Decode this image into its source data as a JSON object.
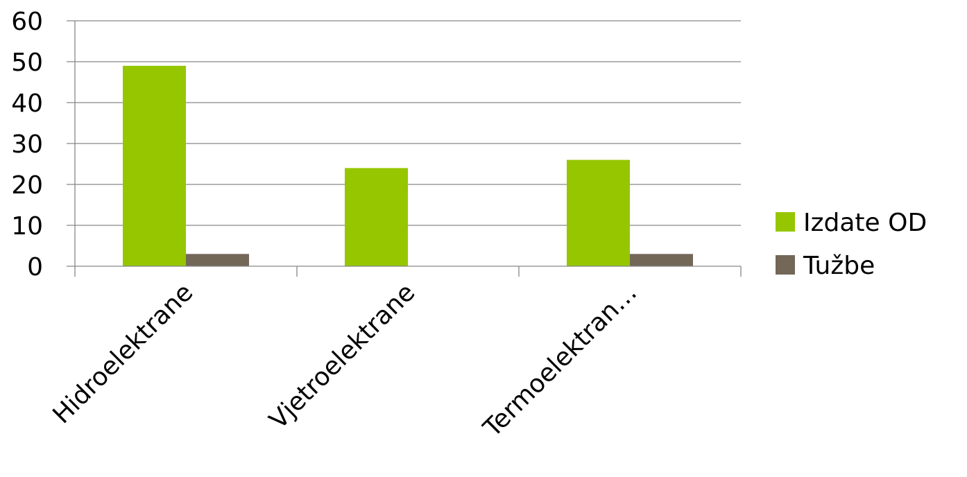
{
  "chart_data": {
    "type": "bar",
    "title": "",
    "xlabel": "",
    "ylabel": "",
    "categories": [
      "Hidroelektrane",
      "Vjetroelektrane",
      "Termoelektran…"
    ],
    "series": [
      {
        "name": "Izdate OD",
        "values": [
          49,
          24,
          26
        ],
        "color": "#95c600"
      },
      {
        "name": "Tužbe",
        "values": [
          3,
          0,
          3
        ],
        "color": "#736758"
      }
    ],
    "ylim": [
      0,
      60
    ],
    "yticks": [
      0,
      10,
      20,
      30,
      40,
      50,
      60
    ],
    "grid": true,
    "legend_position": "right"
  }
}
